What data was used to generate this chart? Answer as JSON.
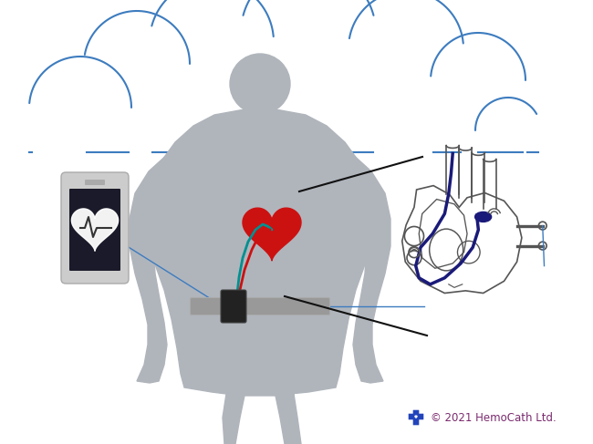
{
  "background_color": "#ffffff",
  "cloud_color": "#3d7cbf",
  "body_color": "#b0b5bc",
  "heart_color": "#cc1111",
  "phone_body_color": "#cccccc",
  "phone_screen_color": "#1a1a2a",
  "catheter_color": "#1a1a7a",
  "teal_line_color": "#009090",
  "pointer_line_color": "#111111",
  "belt_color": "#999999",
  "device_color": "#222222",
  "copyright_text": "© 2021 HemoCath Ltd.",
  "copyright_color": "#7a2a6e",
  "cross_color": "#2244bb",
  "anat_heart_color": "#555555",
  "blue_line_color": "#3d7cbf",
  "fig_w": 6.5,
  "fig_h": 4.87,
  "dpi": 100
}
